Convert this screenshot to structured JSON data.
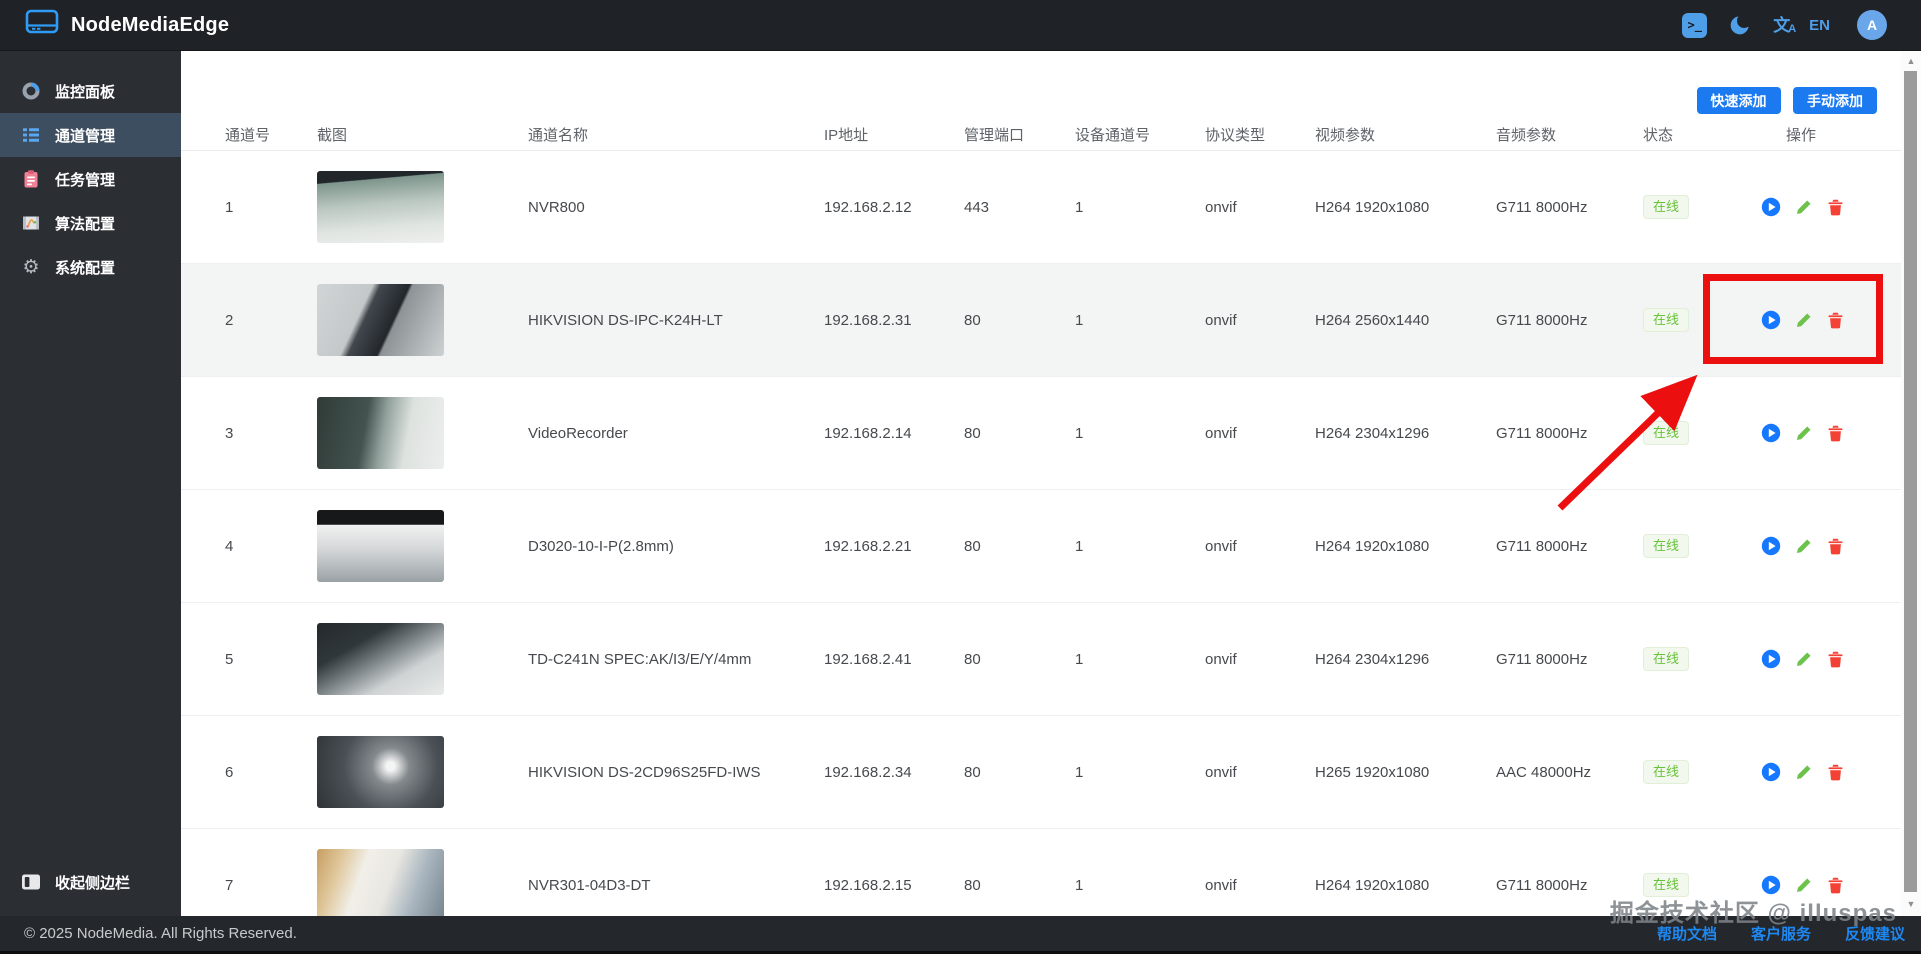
{
  "header": {
    "app_title": "NodeMediaEdge",
    "language": "EN",
    "avatar_letter": "A",
    "icons": [
      "terminal-icon",
      "dark-mode-icon",
      "translate-icon"
    ]
  },
  "sidebar": {
    "items": [
      {
        "label": "监控面板",
        "icon": "dashboard-pie-icon",
        "active": false
      },
      {
        "label": "通道管理",
        "icon": "channel-list-icon",
        "active": true
      },
      {
        "label": "任务管理",
        "icon": "task-clipboard-icon",
        "active": false
      },
      {
        "label": "算法配置",
        "icon": "algorithm-film-icon",
        "active": false
      },
      {
        "label": "系统配置",
        "icon": "system-gear-icon",
        "active": false
      }
    ],
    "collapse_label": "收起侧边栏"
  },
  "toolbar": {
    "quick_add_label": "快速添加",
    "manual_add_label": "手动添加"
  },
  "table": {
    "columns": [
      "通道号",
      "截图",
      "通道名称",
      "IP地址",
      "管理端口",
      "设备通道号",
      "协议类型",
      "视频参数",
      "音频参数",
      "状态",
      "操作"
    ],
    "rows": [
      {
        "channel": "1",
        "name": "NVR800",
        "ip": "192.168.2.12",
        "port": "443",
        "device_channel": "1",
        "protocol": "onvif",
        "video": "H264 1920x1080",
        "audio": "G711 8000Hz",
        "status": "在线",
        "highlighted": false
      },
      {
        "channel": "2",
        "name": "HIKVISION DS-IPC-K24H-LT",
        "ip": "192.168.2.31",
        "port": "80",
        "device_channel": "1",
        "protocol": "onvif",
        "video": "H264 2560x1440",
        "audio": "G711 8000Hz",
        "status": "在线",
        "highlighted": true
      },
      {
        "channel": "3",
        "name": "VideoRecorder",
        "ip": "192.168.2.14",
        "port": "80",
        "device_channel": "1",
        "protocol": "onvif",
        "video": "H264 2304x1296",
        "audio": "G711 8000Hz",
        "status": "在线",
        "highlighted": false
      },
      {
        "channel": "4",
        "name": "D3020-10-I-P(2.8mm)",
        "ip": "192.168.2.21",
        "port": "80",
        "device_channel": "1",
        "protocol": "onvif",
        "video": "H264 1920x1080",
        "audio": "G711 8000Hz",
        "status": "在线",
        "highlighted": false
      },
      {
        "channel": "5",
        "name": "TD-C241N SPEC:AK/I3/E/Y/4mm",
        "ip": "192.168.2.41",
        "port": "80",
        "device_channel": "1",
        "protocol": "onvif",
        "video": "H264 2304x1296",
        "audio": "G711 8000Hz",
        "status": "在线",
        "highlighted": false
      },
      {
        "channel": "6",
        "name": "HIKVISION DS-2CD96S25FD-IWS",
        "ip": "192.168.2.34",
        "port": "80",
        "device_channel": "1",
        "protocol": "onvif",
        "video": "H265 1920x1080",
        "audio": "AAC 48000Hz",
        "status": "在线",
        "highlighted": false
      },
      {
        "channel": "7",
        "name": "NVR301-04D3-DT",
        "ip": "192.168.2.15",
        "port": "80",
        "device_channel": "1",
        "protocol": "onvif",
        "video": "H264 1920x1080",
        "audio": "G711 8000Hz",
        "status": "在线",
        "highlighted": false
      }
    ],
    "row_actions": [
      "play-button",
      "edit-button",
      "delete-button"
    ]
  },
  "annotation": {
    "description": "red rectangle around row 2 action buttons with red arrow pointing to it",
    "color": "#ec0f0f"
  },
  "footer": {
    "copyright": "© 2025 NodeMedia. All Rights Reserved.",
    "links": [
      "帮助文档",
      "客户服务",
      "反馈建议"
    ]
  },
  "watermark": "掘金技术社区 @ illuspas",
  "colors": {
    "accent_blue": "#1b7af0",
    "icon_blue": "#4f9ee8",
    "status_green": "#67c23a",
    "annotation_red": "#ec0f0f",
    "topbar_bg": "#1f2226",
    "sidebar_bg": "#2b2e33",
    "active_item_bg": "#3e4e61"
  }
}
